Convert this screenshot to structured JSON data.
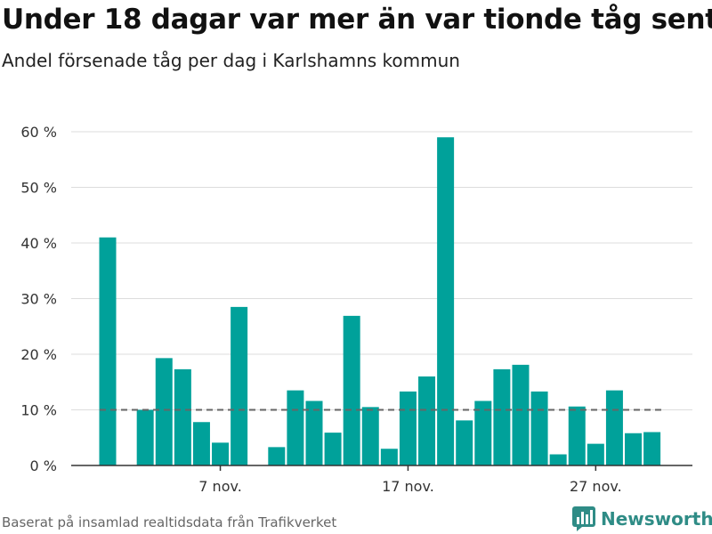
{
  "title": "Under 18 dagar var mer än var tionde tåg sent",
  "subtitle": "Andel försenade tåg per dag i Karlshamns kommun",
  "footer": "Baserat på insamlad realtidsdata från Trafikverket",
  "brand": "Newsworthy",
  "colors": {
    "bar": "#00a19a",
    "reference_line": "#666666",
    "grid": "#dddddd",
    "brand": "#2f8c86"
  },
  "chart_data": {
    "type": "bar",
    "x": [
      "1 nov.",
      "2 nov.",
      "3 nov.",
      "4 nov.",
      "5 nov.",
      "6 nov.",
      "7 nov.",
      "8 nov.",
      "9 nov.",
      "10 nov.",
      "11 nov.",
      "12 nov.",
      "13 nov.",
      "14 nov.",
      "15 nov.",
      "16 nov.",
      "17 nov.",
      "18 nov.",
      "19 nov.",
      "20 nov.",
      "21 nov.",
      "22 nov.",
      "23 nov.",
      "24 nov.",
      "25 nov.",
      "26 nov.",
      "27 nov.",
      "28 nov.",
      "29 nov.",
      "30 nov.",
      "1 dec."
    ],
    "values": [
      41,
      null,
      10,
      19.3,
      17.3,
      7.8,
      4.1,
      28.5,
      null,
      3.3,
      13.5,
      11.6,
      5.9,
      26.9,
      10.5,
      3,
      13.3,
      16,
      59,
      8.1,
      11.6,
      17.3,
      18.1,
      13.3,
      2,
      10.6,
      3.9,
      13.5,
      5.8,
      6,
      null
    ],
    "reference_value": 10,
    "yticks": [
      0,
      10,
      20,
      30,
      40,
      50,
      60
    ],
    "ytick_labels": [
      "0 %",
      "10 %",
      "20 %",
      "30 %",
      "40 %",
      "50 %",
      "60 %"
    ],
    "xtick_positions": [
      6,
      16,
      26
    ],
    "xtick_labels": [
      "7 nov.",
      "17 nov.",
      "27 nov."
    ],
    "ylim": [
      0,
      60
    ],
    "grid": true
  }
}
